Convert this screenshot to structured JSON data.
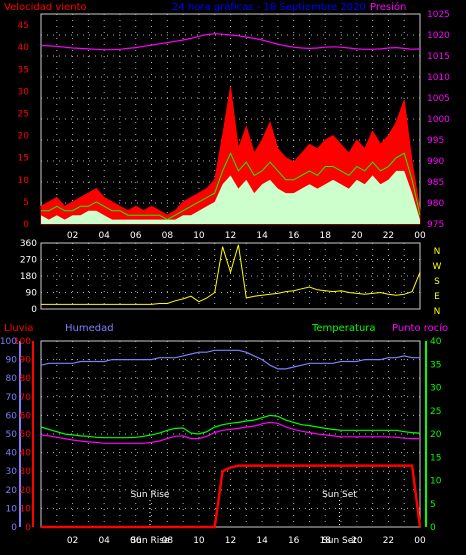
{
  "colors": {
    "wind": "#ff0000",
    "gust_fill": "#ff0000",
    "avg": "#00ff00",
    "calm": "#ccffcc",
    "pressure": "#ff00ff",
    "direction": "#ffff00",
    "humidity": "#7f7fff",
    "temperature": "#00ff00",
    "dewpoint": "#ff00ff",
    "rain": "#ff0000",
    "grid": "#ffffff",
    "axis_text": "#ffffff"
  },
  "x_ticks": [
    "02",
    "04",
    "06",
    "08",
    "10",
    "12",
    "14",
    "16",
    "18",
    "20",
    "22",
    "00"
  ],
  "chart_data": [
    {
      "type": "area",
      "title": "24 hora gráficas - 18 Septiembre 2020",
      "left_label": "Velocidad viento",
      "right_label": "Presión",
      "y_left_ticks": [
        "0",
        "5",
        "10",
        "15",
        "20",
        "25",
        "30",
        "35",
        "40",
        "45"
      ],
      "y_right_ticks": [
        "975",
        "980",
        "985",
        "990",
        "995",
        "1000",
        "1005",
        "1010",
        "1015",
        "1020",
        "1025"
      ],
      "ylim_left": [
        0,
        47.5
      ],
      "ylim_right": [
        975,
        1025
      ],
      "x": [
        0,
        0.5,
        1,
        1.5,
        2,
        2.5,
        3,
        3.5,
        4,
        4.5,
        5,
        5.5,
        6,
        6.5,
        7,
        7.5,
        8,
        8.5,
        9,
        9.5,
        10,
        10.5,
        11,
        11.5,
        12,
        12.5,
        13,
        13.5,
        14,
        14.5,
        15,
        15.5,
        16,
        16.5,
        17,
        17.5,
        18,
        18.5,
        19,
        19.5,
        20,
        20.5,
        21,
        21.5,
        22,
        22.5,
        23,
        23.5,
        24
      ],
      "series": [
        {
          "name": "Velocidad viento",
          "role": "gust",
          "values": [
            4,
            5,
            6,
            4,
            5,
            6,
            7,
            8,
            6,
            5,
            4,
            3,
            4,
            3,
            4,
            3,
            2,
            3,
            5,
            6,
            7,
            8,
            10,
            20,
            31,
            17,
            22,
            16,
            19,
            23,
            17,
            15,
            14,
            16,
            18,
            17,
            19,
            20,
            18,
            16,
            19,
            17,
            21,
            18,
            20,
            23,
            28,
            14,
            3
          ]
        },
        {
          "name": "avg",
          "role": "average",
          "values": [
            3,
            3,
            4,
            3,
            3,
            4,
            4,
            5,
            4,
            3,
            3,
            2,
            2,
            2,
            2,
            2,
            1,
            2,
            3,
            4,
            5,
            6,
            7,
            12,
            16,
            12,
            14,
            11,
            12,
            14,
            12,
            10,
            10,
            11,
            12,
            11,
            13,
            13,
            12,
            11,
            13,
            12,
            14,
            12,
            13,
            15,
            16,
            10,
            2
          ]
        },
        {
          "name": "calm",
          "role": "fill",
          "values": [
            2,
            1,
            2,
            1,
            2,
            2,
            3,
            3,
            2,
            1,
            1,
            1,
            1,
            1,
            1,
            1,
            1,
            1,
            2,
            2,
            3,
            4,
            5,
            9,
            11,
            8,
            10,
            7,
            9,
            10,
            8,
            7,
            7,
            8,
            9,
            8,
            9,
            10,
            9,
            8,
            10,
            9,
            11,
            9,
            10,
            12,
            12,
            7,
            1
          ]
        },
        {
          "name": "Presión",
          "role": "pressure",
          "values": [
            1017.5,
            1017.4,
            1017.3,
            1017.1,
            1016.9,
            1016.8,
            1016.7,
            1016.6,
            1016.5,
            1016.5,
            1016.6,
            1016.8,
            1017.0,
            1017.3,
            1017.6,
            1017.9,
            1018.2,
            1018.5,
            1018.8,
            1019.2,
            1019.7,
            1020.1,
            1020.3,
            1020.2,
            1020.0,
            1019.8,
            1019.5,
            1019.2,
            1018.8,
            1018.3,
            1017.8,
            1017.4,
            1017.1,
            1016.9,
            1016.8,
            1016.9,
            1017.1,
            1017.2,
            1017.1,
            1016.9,
            1016.7,
            1016.6,
            1016.6,
            1016.7,
            1016.9,
            1017.0,
            1016.8,
            1016.6,
            1016.7
          ]
        }
      ]
    },
    {
      "type": "line",
      "y_ticks": [
        "0",
        "90",
        "180",
        "270",
        "360"
      ],
      "ylim": [
        0,
        360
      ],
      "right_labels": [
        "N",
        "W",
        "S",
        "E",
        "N"
      ],
      "x": [
        0,
        0.5,
        1,
        1.5,
        2,
        2.5,
        3,
        3.5,
        4,
        4.5,
        5,
        5.5,
        6,
        6.5,
        7,
        7.5,
        8,
        8.5,
        9,
        9.5,
        10,
        10.5,
        11,
        11.5,
        12,
        12.5,
        13,
        13.5,
        14,
        14.5,
        15,
        15.5,
        16,
        16.5,
        17,
        17.5,
        18,
        18.5,
        19,
        19.5,
        20,
        20.5,
        21,
        21.5,
        22,
        22.5,
        23,
        23.5,
        24
      ],
      "series": [
        {
          "name": "dirección",
          "values": [
            25,
            25,
            25,
            25,
            25,
            25,
            25,
            25,
            25,
            25,
            25,
            25,
            25,
            25,
            25,
            30,
            30,
            45,
            55,
            70,
            40,
            60,
            90,
            340,
            200,
            350,
            60,
            70,
            75,
            80,
            85,
            95,
            100,
            110,
            120,
            105,
            100,
            95,
            100,
            90,
            85,
            80,
            85,
            90,
            80,
            75,
            80,
            95,
            200
          ]
        }
      ]
    },
    {
      "type": "line",
      "left_label": "Lluvia",
      "left_label2": "Humedad",
      "right_label": "Temperatura",
      "right_label2": "Punto rocío",
      "y_left_ticks": [
        "0",
        "10",
        "20",
        "30",
        "40",
        "50",
        "60",
        "70",
        "80",
        "90",
        "100"
      ],
      "y_right_ticks": [
        "0",
        "5",
        "10",
        "15",
        "20",
        "25",
        "30",
        "35",
        "40"
      ],
      "ylim_left": [
        0,
        100
      ],
      "ylim_right": [
        0,
        40
      ],
      "annotations": [
        "Sun Rise",
        "Sun Set",
        "Sun Rise",
        "Sun Set"
      ],
      "x": [
        0,
        0.5,
        1,
        1.5,
        2,
        2.5,
        3,
        3.5,
        4,
        4.5,
        5,
        5.5,
        6,
        6.5,
        7,
        7.5,
        8,
        8.5,
        9,
        9.5,
        10,
        10.5,
        11,
        11.5,
        12,
        12.5,
        13,
        13.5,
        14,
        14.5,
        15,
        15.5,
        16,
        16.5,
        17,
        17.5,
        18,
        18.5,
        19,
        19.5,
        20,
        20.5,
        21,
        21.5,
        22,
        22.5,
        23,
        23.5,
        24
      ],
      "series": [
        {
          "name": "Humedad",
          "values": [
            87,
            88,
            88,
            88,
            88,
            89,
            89,
            89,
            89,
            90,
            90,
            90,
            90,
            90,
            90,
            91,
            91,
            91,
            92,
            93,
            94,
            94,
            95,
            95,
            95,
            95,
            94,
            92,
            90,
            87,
            85,
            85,
            86,
            87,
            88,
            88,
            88,
            88,
            89,
            89,
            89,
            90,
            90,
            90,
            91,
            91,
            92,
            91,
            91
          ]
        },
        {
          "name": "Temperatura",
          "values": [
            21.5,
            21,
            20.5,
            20,
            19.8,
            19.6,
            19.5,
            19.3,
            19.2,
            19.2,
            19.2,
            19.2,
            19.3,
            19.5,
            19.8,
            20.2,
            20.8,
            21.2,
            21.3,
            20.2,
            20,
            20.5,
            21.5,
            22,
            22.3,
            22.5,
            22.8,
            23,
            23.5,
            24,
            23.8,
            23,
            22.5,
            22,
            21.8,
            21.5,
            21.2,
            21,
            20.8,
            20.8,
            20.8,
            20.8,
            20.8,
            20.8,
            20.8,
            20.8,
            20.5,
            20.3,
            20.2
          ]
        },
        {
          "name": "Punto rocío",
          "values": [
            19.8,
            19.6,
            19.3,
            19,
            18.7,
            18.5,
            18.3,
            18.2,
            18,
            18,
            18,
            18,
            18,
            18,
            18.2,
            18.5,
            19,
            19.5,
            19.6,
            19,
            19,
            19.5,
            20.3,
            20.8,
            21,
            21.2,
            21.5,
            21.7,
            22.2,
            22.5,
            22.3,
            21.5,
            21,
            20.6,
            20.3,
            20,
            19.8,
            19.6,
            19.4,
            19.4,
            19.4,
            19.4,
            19.4,
            19.4,
            19.4,
            19.3,
            19.1,
            19,
            19
          ]
        },
        {
          "name": "Lluvia",
          "values": [
            0,
            0,
            0,
            0,
            0,
            0,
            0,
            0,
            0,
            0,
            0,
            0,
            0,
            0,
            0,
            0,
            0,
            0,
            0,
            0,
            0,
            0,
            0,
            30,
            32,
            33,
            33,
            33,
            33,
            33,
            33,
            33,
            33,
            33,
            33,
            33,
            33,
            33,
            33,
            33,
            33,
            33,
            33,
            33,
            33,
            33,
            33,
            33,
            0
          ]
        }
      ]
    }
  ]
}
